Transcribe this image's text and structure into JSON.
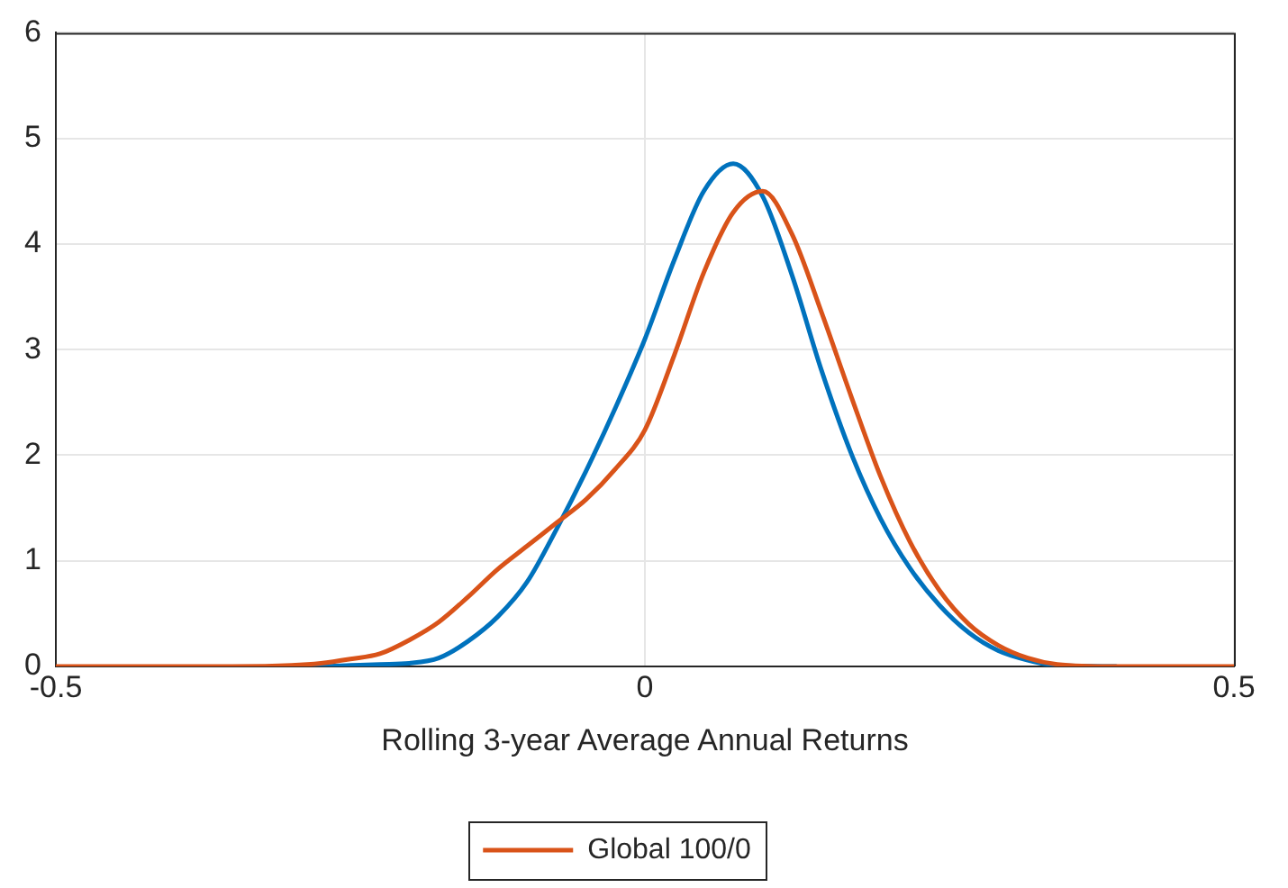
{
  "chart_data": {
    "type": "line",
    "xlabel": "Rolling 3-year Average Annual Returns",
    "x": [
      -0.5,
      -0.45,
      -0.4,
      -0.35,
      -0.3,
      -0.275,
      -0.25,
      -0.225,
      -0.2,
      -0.175,
      -0.15,
      -0.125,
      -0.1,
      -0.075,
      -0.05,
      -0.025,
      0,
      0.025,
      0.05,
      0.075,
      0.1,
      0.125,
      0.15,
      0.175,
      0.2,
      0.225,
      0.25,
      0.275,
      0.3,
      0.325,
      0.35,
      0.4,
      0.45,
      0.5
    ],
    "series": [
      {
        "color": "#0072bd",
        "values": [
          null,
          null,
          null,
          null,
          0,
          0,
          0.01,
          0.02,
          0.03,
          0.08,
          0.24,
          0.47,
          0.8,
          1.3,
          1.85,
          2.45,
          3.1,
          3.85,
          4.5,
          4.76,
          4.45,
          3.7,
          2.8,
          2.02,
          1.4,
          0.93,
          0.58,
          0.32,
          0.15,
          0.06,
          0.01,
          0,
          null,
          null
        ]
      },
      {
        "name": "Global 100/0",
        "color": "#d95319",
        "values": [
          0,
          0,
          0,
          0,
          0.01,
          0.03,
          0.07,
          0.12,
          0.25,
          0.42,
          0.66,
          0.92,
          1.14,
          1.36,
          1.58,
          1.87,
          2.24,
          2.95,
          3.73,
          4.3,
          4.5,
          4.09,
          3.35,
          2.56,
          1.8,
          1.18,
          0.72,
          0.4,
          0.2,
          0.08,
          0.02,
          0,
          0,
          0
        ]
      }
    ],
    "xlim": [
      -0.5,
      0.5
    ],
    "ylim": [
      0,
      6
    ],
    "xticks": [
      -0.5,
      0,
      0.5
    ],
    "yticks": [
      0,
      1,
      2,
      3,
      4,
      5,
      6
    ],
    "grid": true,
    "legend": "bottom"
  }
}
